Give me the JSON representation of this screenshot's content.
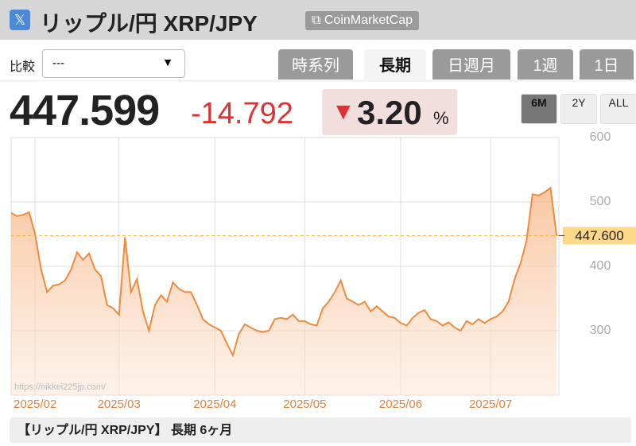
{
  "header": {
    "title": "リップル/円 XRP/JPY",
    "source_button": "CoinMarketCap"
  },
  "compare": {
    "label": "比較",
    "value": "---"
  },
  "tabs": [
    "時系列",
    "長期",
    "日週月",
    "1週",
    "1日"
  ],
  "price": {
    "last": "447.599",
    "change": "-14.792",
    "percent": "3.20",
    "percent_unit": "%"
  },
  "ranges": [
    "6M",
    "2Y",
    "ALL"
  ],
  "footer": "【リップル/円 XRP/JPY】 長期 6ヶ月",
  "chart_data": {
    "type": "area",
    "watermark": "https://nikkei225jp.com/",
    "categories": [
      null,
      null,
      null,
      null,
      "2025/02",
      null,
      null,
      null,
      null,
      null,
      null,
      null,
      null,
      null,
      null,
      null,
      null,
      null,
      "2025/03",
      null,
      null,
      null,
      null,
      null,
      null,
      null,
      null,
      null,
      null,
      null,
      null,
      null,
      null,
      null,
      "2025/04",
      null,
      null,
      null,
      null,
      null,
      null,
      null,
      null,
      null,
      null,
      null,
      null,
      null,
      null,
      "2025/05",
      null,
      null,
      null,
      null,
      null,
      null,
      null,
      null,
      null,
      null,
      null,
      null,
      null,
      null,
      null,
      "2025/06",
      null,
      null,
      null,
      null,
      null,
      null,
      null,
      null,
      null,
      null,
      null,
      null,
      null,
      null,
      "2025/07",
      null,
      null,
      null,
      null,
      null,
      null,
      null,
      null,
      null,
      null,
      null
    ],
    "series": [
      {
        "name": "XRP/JPY",
        "color": "#f08a3c",
        "values": [
          483,
          478,
          480,
          484,
          450,
          395,
          360,
          370,
          372,
          378,
          395,
          422,
          410,
          420,
          395,
          385,
          340,
          335,
          325,
          445,
          360,
          380,
          330,
          300,
          340,
          355,
          345,
          375,
          365,
          360,
          360,
          340,
          318,
          310,
          305,
          300,
          280,
          262,
          295,
          310,
          305,
          300,
          298,
          300,
          318,
          320,
          318,
          325,
          315,
          315,
          310,
          308,
          335,
          345,
          360,
          378,
          350,
          345,
          340,
          345,
          330,
          338,
          330,
          322,
          320,
          312,
          308,
          320,
          328,
          332,
          318,
          315,
          308,
          313,
          305,
          300,
          315,
          310,
          318,
          312,
          318,
          322,
          330,
          345,
          380,
          405,
          440,
          512,
          510,
          515,
          522,
          448
        ]
      }
    ],
    "ylim": [
      200,
      600
    ],
    "yticks": [
      300,
      400,
      500,
      600
    ],
    "grid": true,
    "current": {
      "value": 447.6,
      "label": "447.600"
    }
  }
}
